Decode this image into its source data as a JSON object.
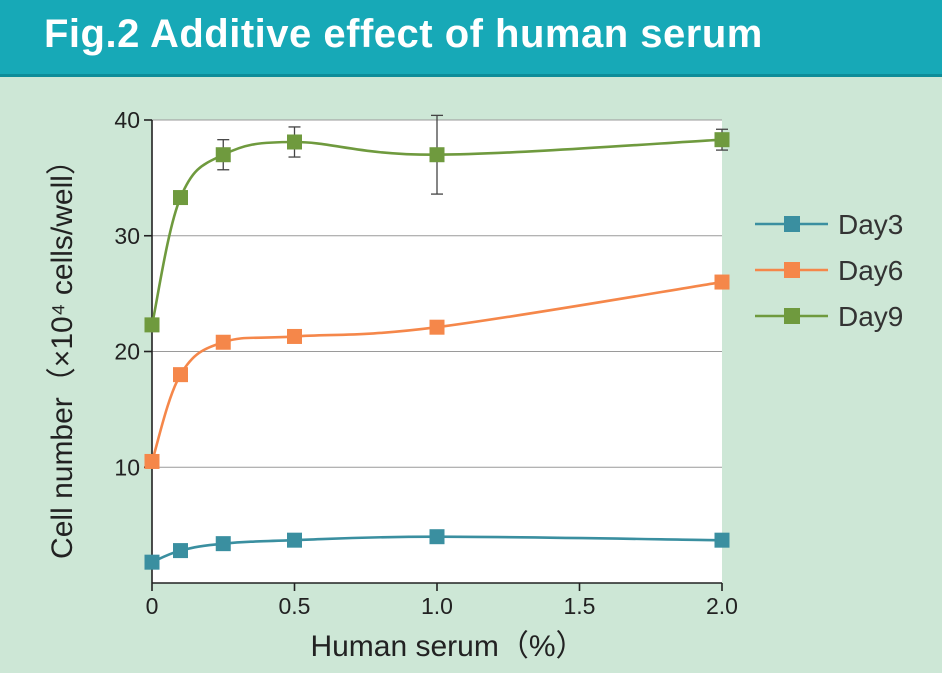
{
  "header": {
    "title": "Fig.2 Additive effect of human serum"
  },
  "chart_data": {
    "type": "line",
    "title": "Fig.2 Additive effect of human serum",
    "xlabel": "Human serum（%）",
    "ylabel": "Cell number（×10⁴ cells/well）",
    "xlim": [
      0,
      2.0
    ],
    "ylim": [
      0,
      40
    ],
    "x_ticks": [
      "0",
      "0.5",
      "1.0",
      "1.5",
      "2.0"
    ],
    "x_tick_values": [
      0,
      0.5,
      1.0,
      1.5,
      2.0
    ],
    "y_ticks": [
      "10",
      "20",
      "30",
      "40"
    ],
    "y_tick_values": [
      10,
      20,
      30,
      40
    ],
    "grid": "horizontal",
    "legend_position": "right",
    "x": [
      0,
      0.1,
      0.25,
      0.5,
      1.0,
      2.0
    ],
    "series": [
      {
        "name": "Day3",
        "color": "#3a8fa0",
        "values": [
          1.8,
          2.8,
          3.4,
          3.7,
          4.0,
          3.7
        ]
      },
      {
        "name": "Day6",
        "color": "#f5874a",
        "values": [
          10.5,
          18.0,
          20.8,
          21.3,
          22.1,
          26.0
        ]
      },
      {
        "name": "Day9",
        "color": "#6f9a3e",
        "values": [
          22.3,
          33.3,
          37.0,
          38.1,
          37.0,
          38.3
        ],
        "error": [
          0,
          0,
          1.3,
          1.3,
          3.4,
          0.9
        ]
      }
    ]
  }
}
